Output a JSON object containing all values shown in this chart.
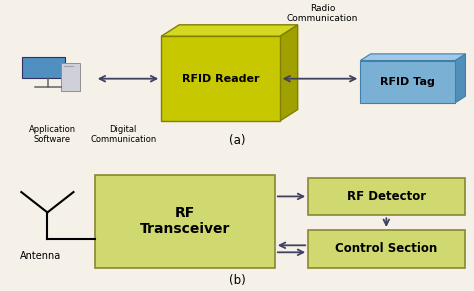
{
  "bg_color": "#f5f0e8",
  "reader_face_color": "#c8c800",
  "reader_top_color": "#d4d820",
  "reader_right_color": "#a0a000",
  "reader_edge_color": "#808000",
  "tag_face_color": "#7ab0d4",
  "tag_top_color": "#a0c8e8",
  "tag_right_color": "#5090b8",
  "tag_edge_color": "#4080a8",
  "box_fill": "#d0d870",
  "box_edge": "#888830",
  "arrow_color": "#404060",
  "text_color": "#000000",
  "title_a": "(a)",
  "title_b": "(b)",
  "rfid_reader_label": "RFID Reader",
  "rfid_tag_label": "RFID Tag",
  "app_software_label": "Application\nSoftware",
  "digital_comm_label": "Digital\nCommunication",
  "radio_comm_label": "Radio\nCommunication",
  "antenna_label": "Antenna",
  "rf_transceiver_label": "RF\nTransceiver",
  "rf_detector_label": "RF Detector",
  "control_section_label": "Control Section"
}
